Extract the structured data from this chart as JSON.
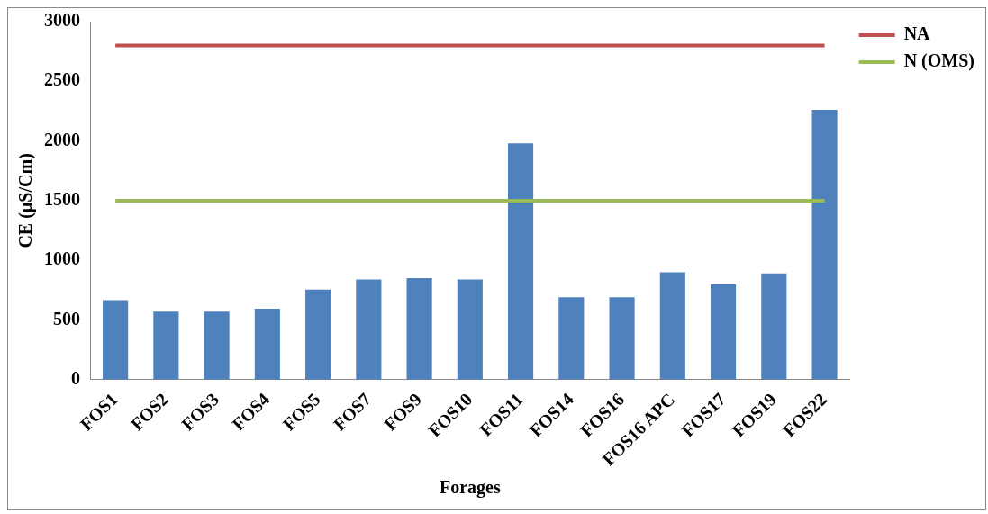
{
  "chart_data": {
    "type": "bar",
    "xlabel": "Forages",
    "ylabel": "CE (µS/Cm)",
    "categories": [
      "FOS1",
      "FOS2",
      "FOS3",
      "FOS4",
      "FOS5",
      "FOS7",
      "FOS9",
      "FOS10",
      "FOS11",
      "FOS14",
      "FOS16",
      "FOS16 APC",
      "FOS17",
      "FOS19",
      "FOS22"
    ],
    "series": [
      {
        "color": "#4f81bd",
        "values": [
          665,
          570,
          570,
          595,
          755,
          840,
          850,
          840,
          1980,
          690,
          690,
          900,
          800,
          890,
          2260
        ]
      },
      {
        "type": "line",
        "name": "NA",
        "color": "#c0504d",
        "values": [
          2800,
          2800,
          2800,
          2800,
          2800,
          2800,
          2800,
          2800,
          2800,
          2800,
          2800,
          2800,
          2800,
          2800,
          2800
        ]
      },
      {
        "type": "line",
        "name": "N (OMS)",
        "color": "#9bbb59",
        "values": [
          1500,
          1500,
          1500,
          1500,
          1500,
          1500,
          1500,
          1500,
          1500,
          1500,
          1500,
          1500,
          1500,
          1500,
          1500
        ]
      }
    ],
    "ylim": [
      0,
      3000
    ],
    "yticks": [
      0,
      500,
      1000,
      1500,
      2000,
      2500,
      3000
    ],
    "grid": false,
    "legend": "top right",
    "marker": "none"
  }
}
